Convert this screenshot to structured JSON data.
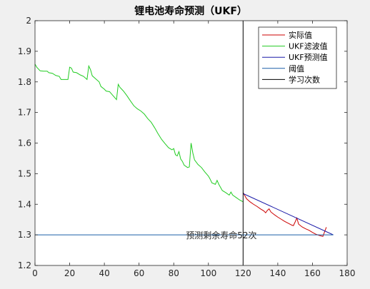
{
  "chart_data": {
    "type": "line",
    "title": "锂电池寿命预测（UKF）",
    "xlabel": "",
    "ylabel": "",
    "xlim": [
      0,
      180
    ],
    "ylim": [
      1.2,
      2.0
    ],
    "xticks": [
      "0",
      "20",
      "40",
      "60",
      "80",
      "100",
      "120",
      "140",
      "160",
      "180"
    ],
    "yticks": [
      "1.2",
      "1.3",
      "1.4",
      "1.5",
      "1.6",
      "1.7",
      "1.8",
      "1.9",
      "2"
    ],
    "grid": false,
    "legend_position": "top-right",
    "series": [
      {
        "name": "实际值",
        "color": "#cc0000",
        "points": [
          [
            120,
            1.438
          ],
          [
            121,
            1.428
          ],
          [
            122,
            1.418
          ],
          [
            124,
            1.408
          ],
          [
            126,
            1.4
          ],
          [
            128,
            1.393
          ],
          [
            130,
            1.385
          ],
          [
            132,
            1.378
          ],
          [
            133,
            1.372
          ],
          [
            134,
            1.38
          ],
          [
            135,
            1.385
          ],
          [
            136,
            1.375
          ],
          [
            138,
            1.366
          ],
          [
            140,
            1.358
          ],
          [
            142,
            1.351
          ],
          [
            144,
            1.344
          ],
          [
            146,
            1.338
          ],
          [
            148,
            1.332
          ],
          [
            149,
            1.33
          ],
          [
            150,
            1.342
          ],
          [
            151,
            1.355
          ],
          [
            152,
            1.335
          ],
          [
            154,
            1.326
          ],
          [
            156,
            1.32
          ],
          [
            158,
            1.315
          ],
          [
            160,
            1.308
          ],
          [
            162,
            1.302
          ],
          [
            164,
            1.298
          ],
          [
            166,
            1.295
          ],
          [
            167,
            1.31
          ],
          [
            168,
            1.325
          ]
        ]
      },
      {
        "name": "UKF滤波值",
        "color": "#22cc22",
        "points": [
          [
            0,
            1.858
          ],
          [
            1,
            1.848
          ],
          [
            3,
            1.836
          ],
          [
            5,
            1.835
          ],
          [
            7,
            1.835
          ],
          [
            8,
            1.83
          ],
          [
            10,
            1.828
          ],
          [
            12,
            1.821
          ],
          [
            14,
            1.818
          ],
          [
            15,
            1.808
          ],
          [
            17,
            1.808
          ],
          [
            19,
            1.808
          ],
          [
            20,
            1.848
          ],
          [
            21,
            1.845
          ],
          [
            22,
            1.832
          ],
          [
            24,
            1.83
          ],
          [
            26,
            1.823
          ],
          [
            28,
            1.818
          ],
          [
            30,
            1.808
          ],
          [
            31,
            1.852
          ],
          [
            32,
            1.84
          ],
          [
            33,
            1.82
          ],
          [
            35,
            1.81
          ],
          [
            37,
            1.8
          ],
          [
            38,
            1.785
          ],
          [
            40,
            1.776
          ],
          [
            41,
            1.77
          ],
          [
            43,
            1.768
          ],
          [
            45,
            1.755
          ],
          [
            47,
            1.742
          ],
          [
            48,
            1.792
          ],
          [
            49,
            1.782
          ],
          [
            51,
            1.77
          ],
          [
            53,
            1.755
          ],
          [
            55,
            1.738
          ],
          [
            57,
            1.722
          ],
          [
            59,
            1.712
          ],
          [
            61,
            1.705
          ],
          [
            63,
            1.695
          ],
          [
            65,
            1.68
          ],
          [
            67,
            1.668
          ],
          [
            69,
            1.65
          ],
          [
            71,
            1.63
          ],
          [
            73,
            1.612
          ],
          [
            75,
            1.598
          ],
          [
            77,
            1.585
          ],
          [
            79,
            1.578
          ],
          [
            80,
            1.582
          ],
          [
            81,
            1.562
          ],
          [
            82,
            1.558
          ],
          [
            83,
            1.572
          ],
          [
            84,
            1.548
          ],
          [
            85,
            1.54
          ],
          [
            86,
            1.528
          ],
          [
            88,
            1.52
          ],
          [
            89,
            1.522
          ],
          [
            90,
            1.6
          ],
          [
            91,
            1.568
          ],
          [
            92,
            1.545
          ],
          [
            94,
            1.53
          ],
          [
            96,
            1.52
          ],
          [
            98,
            1.505
          ],
          [
            100,
            1.492
          ],
          [
            101,
            1.482
          ],
          [
            102,
            1.47
          ],
          [
            104,
            1.465
          ],
          [
            105,
            1.478
          ],
          [
            106,
            1.465
          ],
          [
            107,
            1.455
          ],
          [
            108,
            1.445
          ],
          [
            110,
            1.438
          ],
          [
            112,
            1.43
          ],
          [
            113,
            1.44
          ],
          [
            114,
            1.43
          ],
          [
            116,
            1.422
          ],
          [
            118,
            1.414
          ],
          [
            120,
            1.408
          ]
        ]
      },
      {
        "name": "UKF预测值",
        "color": "#1a1aa8",
        "points": [
          [
            120,
            1.435
          ],
          [
            172,
            1.3
          ]
        ]
      },
      {
        "name": "阈值",
        "color": "#1a5fa8",
        "points": [
          [
            0,
            1.3
          ],
          [
            172,
            1.3
          ]
        ]
      },
      {
        "name": "学习次数",
        "color": "#000000",
        "points": [
          [
            120,
            1.2
          ],
          [
            120,
            2.0
          ]
        ]
      }
    ],
    "annotations": [
      {
        "text": "预测剩余寿命52次",
        "x": 87,
        "y": 1.3
      }
    ]
  }
}
